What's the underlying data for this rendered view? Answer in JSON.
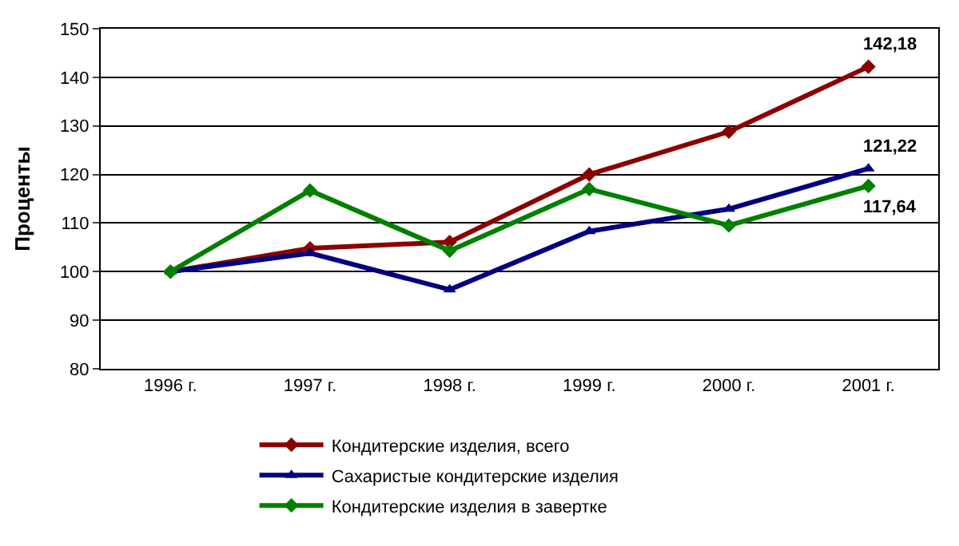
{
  "chart_data": {
    "type": "line",
    "ylabel": "Проценты",
    "categories": [
      "1996 г.",
      "1997 г.",
      "1998 г.",
      "1999 г.",
      "2000 г.",
      "2001 г."
    ],
    "series": [
      {
        "name": "Кондитерские изделия, всего",
        "color": "#8b0000",
        "marker": "diamond",
        "values": [
          100,
          104.8,
          106.1,
          120,
          128.8,
          142.18
        ]
      },
      {
        "name": "Сахаристые кондитерские изделия",
        "color": "#000080",
        "marker": "triangle",
        "values": [
          100,
          103.8,
          96.3,
          108.3,
          112.9,
          121.22
        ]
      },
      {
        "name": "Кондитерские изделия в завертке",
        "color": "#008000",
        "marker": "diamond",
        "values": [
          100,
          116.7,
          104.3,
          117,
          109.5,
          117.64
        ]
      }
    ],
    "annotations": [
      {
        "text": "142,18",
        "x": "2001 г.",
        "y": 142.18
      },
      {
        "text": "121,22",
        "x": "2001 г.",
        "y": 121.22
      },
      {
        "text": "117,64",
        "x": "2001 г.",
        "y": 117.64
      }
    ],
    "ylim": [
      80,
      150
    ],
    "yticks": [
      80,
      90,
      100,
      110,
      120,
      130,
      140,
      150
    ],
    "grid": "y",
    "legend": "bottom",
    "line_style": "solid"
  }
}
